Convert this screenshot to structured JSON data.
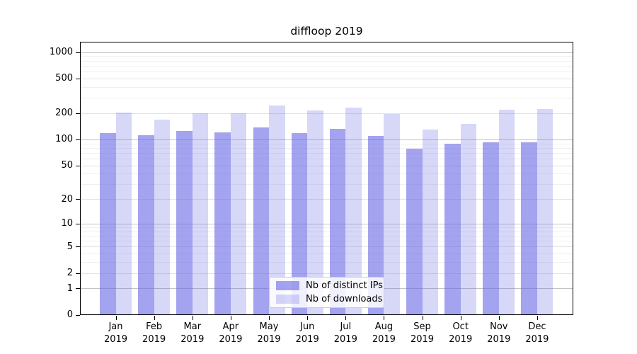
{
  "chart_data": {
    "type": "bar",
    "title": "diffloop 2019",
    "scale": "log1p",
    "ylim": [
      0,
      1300
    ],
    "grid": "on",
    "legend_position": "bottom-center-inside",
    "categories": [
      "Jan",
      "Feb",
      "Mar",
      "Apr",
      "May",
      "Jun",
      "Jul",
      "Aug",
      "Sep",
      "Oct",
      "Nov",
      "Dec"
    ],
    "category_year": "2019",
    "series": [
      {
        "name": "Nb of distinct IPs",
        "color": "rgba(102,102,228,0.60)",
        "values": [
          117,
          110,
          124,
          119,
          136,
          117,
          131,
          108,
          78,
          89,
          92,
          91
        ]
      },
      {
        "name": "Nb of downloads",
        "color": "rgba(102,102,228,0.26)",
        "values": [
          202,
          168,
          199,
          198,
          245,
          215,
          232,
          196,
          129,
          150,
          219,
          220
        ]
      }
    ],
    "yticks": [
      {
        "value": 1000,
        "label": "1000"
      },
      {
        "value": 500,
        "label": "500"
      },
      {
        "value": 200,
        "label": "200"
      },
      {
        "value": 100,
        "label": "100"
      },
      {
        "value": 50,
        "label": "50"
      },
      {
        "value": 20,
        "label": "20"
      },
      {
        "value": 10,
        "label": "10"
      },
      {
        "value": 5,
        "label": "5"
      },
      {
        "value": 2,
        "label": "2"
      },
      {
        "value": 1,
        "label": "1"
      },
      {
        "value": 0,
        "label": "0"
      }
    ],
    "gridlines": {
      "major": {
        "values": [
          1,
          10,
          100,
          1000
        ],
        "color": "#c3c3c3"
      },
      "mid": {
        "values": [
          2,
          5,
          20,
          50,
          200,
          500
        ],
        "color": "#e2e2e6"
      },
      "minor": {
        "values": [
          3,
          4,
          6,
          7,
          8,
          9,
          30,
          40,
          60,
          70,
          80,
          90,
          300,
          400,
          600,
          700,
          800,
          900
        ],
        "color": "#f0f0f3"
      }
    }
  },
  "colors": {
    "background": "#ffffff",
    "axis": "#000000",
    "bar_distinct_ips": "rgba(102,102,228,0.60)",
    "bar_downloads": "rgba(102,102,228,0.26)",
    "legend_border": "#cccccc"
  }
}
